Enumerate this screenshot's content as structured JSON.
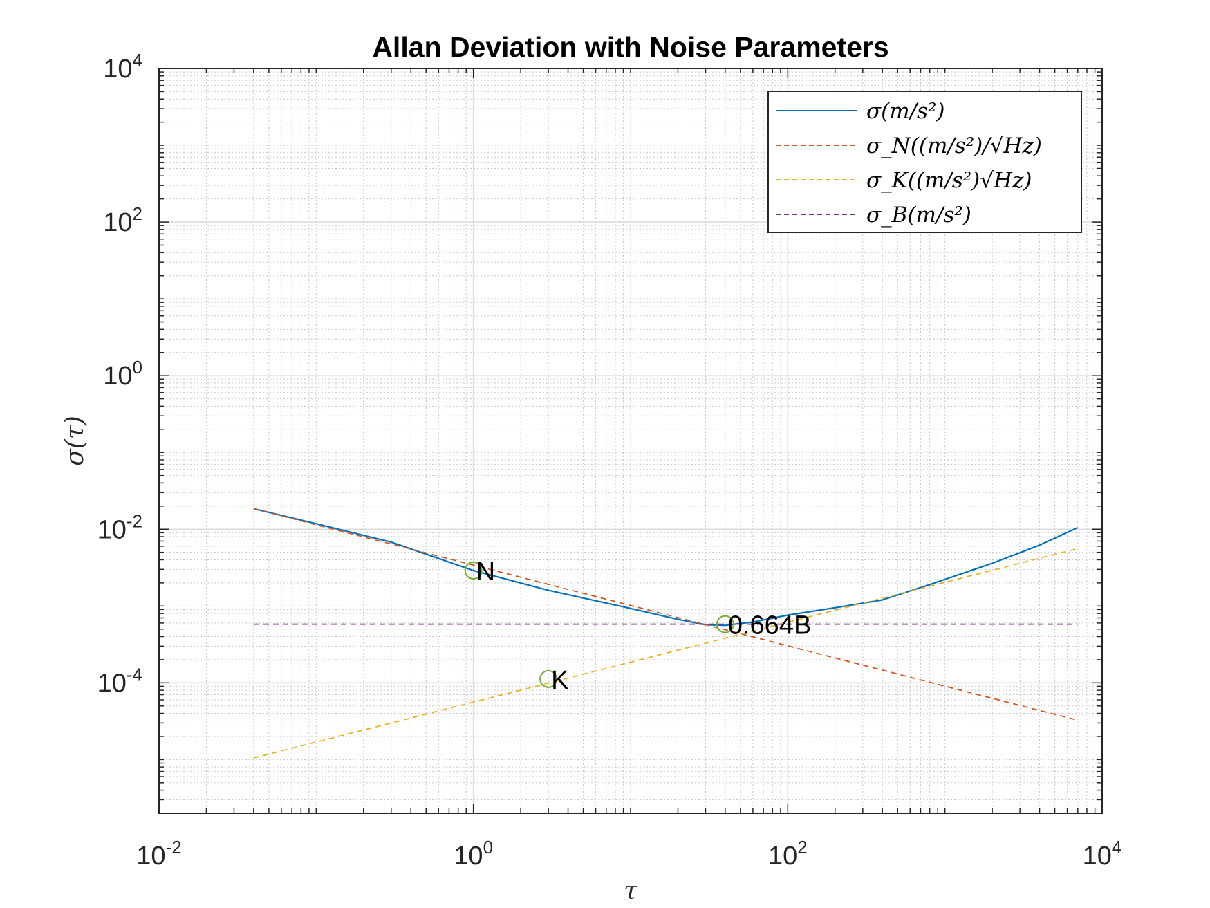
{
  "chart_data": {
    "type": "line",
    "title": "Allan Deviation with Noise Parameters",
    "xlabel": "τ",
    "ylabel": "σ(τ)",
    "xscale": "log",
    "yscale": "log",
    "xlim": [
      0.01,
      10000
    ],
    "ylim": [
      2e-06,
      10000
    ],
    "grid": true,
    "minor_grid": true,
    "legend_position": "top-right",
    "x_ticks": [
      {
        "base": "10",
        "exp": "-2"
      },
      {
        "base": "10",
        "exp": "0"
      },
      {
        "base": "10",
        "exp": "2"
      },
      {
        "base": "10",
        "exp": "4"
      }
    ],
    "y_ticks": [
      {
        "base": "10",
        "exp": "-4"
      },
      {
        "base": "10",
        "exp": "-2"
      },
      {
        "base": "10",
        "exp": "0"
      },
      {
        "base": "10",
        "exp": "2"
      },
      {
        "base": "10",
        "exp": "4"
      }
    ],
    "series": [
      {
        "name": "σ(m/s²)",
        "color": "#0072BD",
        "style": "solid",
        "x": [
          0.04,
          0.1,
          0.3,
          1,
          3,
          10,
          20,
          30,
          40,
          60,
          100,
          200,
          400,
          800,
          2000,
          4000,
          7000
        ],
        "y": [
          0.0185,
          0.0118,
          0.0068,
          0.0029,
          0.0016,
          0.00093,
          0.00067,
          0.00057,
          0.00056,
          0.00062,
          0.00076,
          0.00095,
          0.0012,
          0.0019,
          0.0036,
          0.0062,
          0.0105
        ]
      },
      {
        "name": "σ_N((m/s²)/√Hz)",
        "color": "#D95319",
        "style": "dashed",
        "x": [
          0.04,
          7000
        ],
        "y": [
          0.0185,
          3.25e-05
        ]
      },
      {
        "name": "σ_K((m/s²)√Hz)",
        "color": "#EDB120",
        "style": "dashed",
        "x": [
          0.04,
          7000
        ],
        "y": [
          1.05e-05,
          0.0056
        ]
      },
      {
        "name": "σ_B(m/s²)",
        "color": "#7E2F8E",
        "style": "dashed",
        "x": [
          0.04,
          7000
        ],
        "y": [
          0.00058,
          0.00058
        ]
      }
    ],
    "markers": [
      {
        "label": "N",
        "x": 1,
        "y": 0.0029,
        "color": "#77AC30"
      },
      {
        "label": "K",
        "x": 3,
        "y": 0.000112,
        "color": "#77AC30"
      },
      {
        "label": "0.664B",
        "x": 40,
        "y": 0.00058,
        "color": "#77AC30"
      }
    ]
  }
}
